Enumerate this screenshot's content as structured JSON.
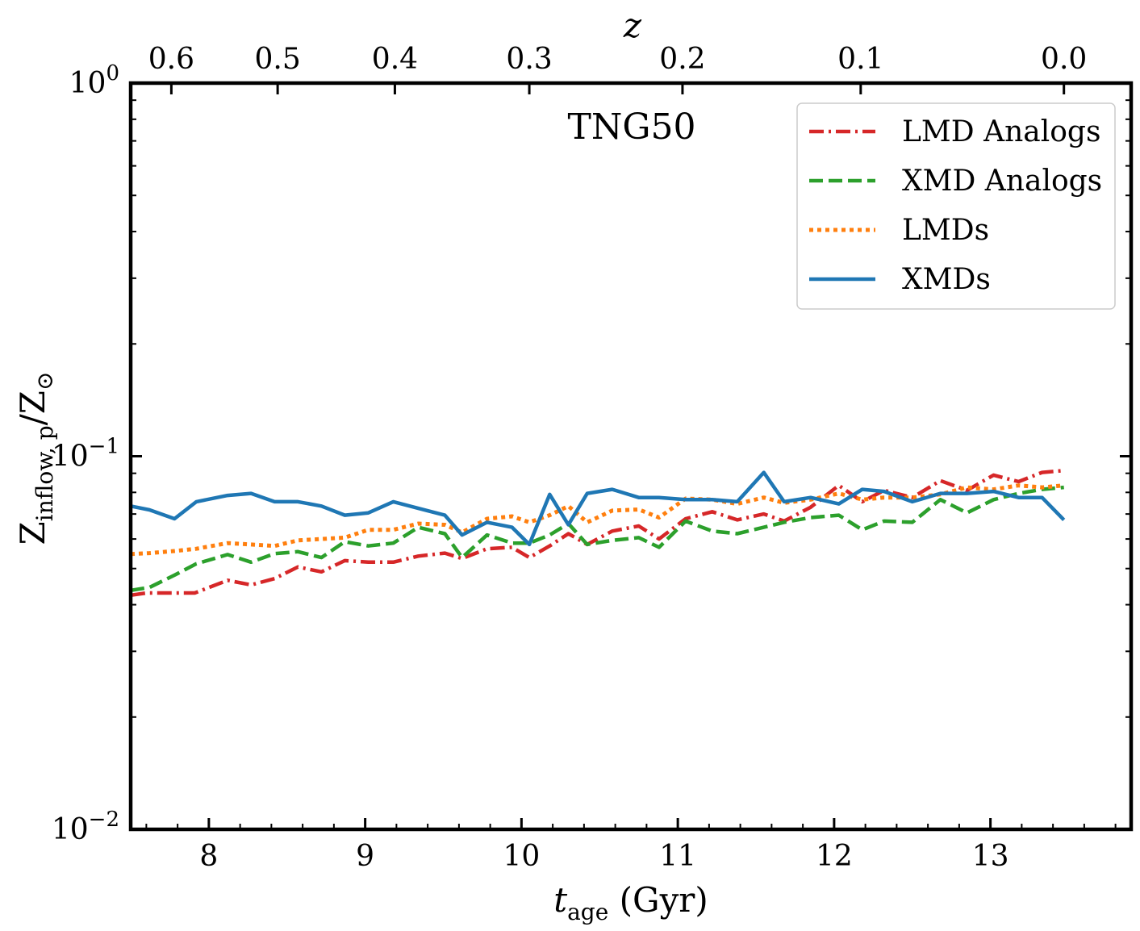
{
  "chart_data": {
    "type": "line",
    "annotation": "TNG50",
    "xlabel_main": "t",
    "xlabel_sub": "age",
    "xlabel_unit": " (Gyr)",
    "ylabel_main": "Z",
    "ylabel_sub": "inflow, p",
    "ylabel_tail": "/Z",
    "ylabel_symbol": "⊙",
    "top_xlabel": "z",
    "xlim": [
      7.5,
      13.9
    ],
    "ylim": [
      0.01,
      1.0
    ],
    "yscale": "log",
    "xticks": [
      {
        "value": 8,
        "label": "8"
      },
      {
        "value": 9,
        "label": "9"
      },
      {
        "value": 10,
        "label": "10"
      },
      {
        "value": 11,
        "label": "11"
      },
      {
        "value": 12,
        "label": "12"
      },
      {
        "value": 13,
        "label": "13"
      }
    ],
    "yticks": [
      {
        "value": 0.01,
        "base": "10",
        "exp": "−2"
      },
      {
        "value": 0.1,
        "base": "10",
        "exp": "−1"
      },
      {
        "value": 1.0,
        "base": "10",
        "exp": "0"
      }
    ],
    "top_ticks": [
      {
        "tage": 7.76,
        "label": "0.6"
      },
      {
        "tage": 8.44,
        "label": "0.5"
      },
      {
        "tage": 9.19,
        "label": "0.4"
      },
      {
        "tage": 10.05,
        "label": "0.3"
      },
      {
        "tage": 11.03,
        "label": "0.2"
      },
      {
        "tage": 12.17,
        "label": "0.1"
      },
      {
        "tage": 13.47,
        "label": "0.0"
      }
    ],
    "legend_position": "top-right",
    "series": [
      {
        "name": "LMD Analogs",
        "color": "#d62728",
        "dash": "dashdot",
        "x": [
          7.5,
          7.6,
          7.76,
          7.91,
          8.12,
          8.27,
          8.42,
          8.57,
          8.72,
          8.87,
          9.02,
          9.18,
          9.34,
          9.51,
          9.62,
          9.78,
          9.94,
          10.05,
          10.18,
          10.3,
          10.42,
          10.58,
          10.75,
          10.88,
          11.05,
          11.22,
          11.38,
          11.55,
          11.68,
          11.85,
          12.03,
          12.18,
          12.32,
          12.5,
          12.68,
          12.85,
          13.02,
          13.18,
          13.33,
          13.47
        ],
        "y": [
          0.0424,
          0.043,
          0.043,
          0.043,
          0.0465,
          0.0452,
          0.047,
          0.0505,
          0.049,
          0.0525,
          0.052,
          0.052,
          0.054,
          0.055,
          0.0532,
          0.0565,
          0.057,
          0.0535,
          0.0575,
          0.062,
          0.058,
          0.063,
          0.065,
          0.06,
          0.068,
          0.071,
          0.0675,
          0.07,
          0.067,
          0.073,
          0.0835,
          0.0755,
          0.081,
          0.0775,
          0.086,
          0.081,
          0.089,
          0.0855,
          0.0905,
          0.0915
        ]
      },
      {
        "name": "XMD Analogs",
        "color": "#2ca02c",
        "dash": "dashed",
        "x": [
          7.5,
          7.62,
          7.78,
          7.92,
          8.12,
          8.27,
          8.42,
          8.57,
          8.72,
          8.87,
          9.02,
          9.18,
          9.34,
          9.51,
          9.62,
          9.78,
          9.94,
          10.05,
          10.18,
          10.3,
          10.42,
          10.58,
          10.75,
          10.88,
          11.05,
          11.22,
          11.38,
          11.55,
          11.68,
          11.85,
          12.03,
          12.18,
          12.32,
          12.5,
          12.68,
          12.85,
          13.02,
          13.18,
          13.33,
          13.47
        ],
        "y": [
          0.0437,
          0.0445,
          0.048,
          0.0515,
          0.0545,
          0.052,
          0.0548,
          0.0555,
          0.0535,
          0.059,
          0.0575,
          0.0585,
          0.0645,
          0.062,
          0.0535,
          0.0615,
          0.0585,
          0.0585,
          0.0615,
          0.066,
          0.058,
          0.0595,
          0.0605,
          0.057,
          0.067,
          0.063,
          0.062,
          0.0645,
          0.0665,
          0.0685,
          0.0695,
          0.0635,
          0.067,
          0.0665,
          0.0765,
          0.0705,
          0.0765,
          0.0795,
          0.0815,
          0.0825
        ]
      },
      {
        "name": "LMDs",
        "color": "#ff7f0e",
        "dash": "dotted",
        "x": [
          7.5,
          7.62,
          7.78,
          7.92,
          8.12,
          8.27,
          8.42,
          8.57,
          8.72,
          8.87,
          9.02,
          9.18,
          9.34,
          9.51,
          9.62,
          9.78,
          9.94,
          10.05,
          10.18,
          10.3,
          10.42,
          10.58,
          10.75,
          10.88,
          11.05,
          11.22,
          11.38,
          11.55,
          11.68,
          11.85,
          12.03,
          12.18,
          12.32,
          12.5,
          12.68,
          12.85,
          13.02,
          13.18,
          13.33,
          13.47
        ],
        "y": [
          0.0547,
          0.055,
          0.0557,
          0.0565,
          0.0585,
          0.058,
          0.0575,
          0.0595,
          0.06,
          0.0605,
          0.0635,
          0.0635,
          0.066,
          0.0655,
          0.0625,
          0.068,
          0.069,
          0.0665,
          0.0695,
          0.0735,
          0.0665,
          0.0715,
          0.072,
          0.0685,
          0.077,
          0.0765,
          0.0745,
          0.0775,
          0.075,
          0.0765,
          0.0795,
          0.0765,
          0.0775,
          0.0775,
          0.079,
          0.0825,
          0.0815,
          0.0835,
          0.0825,
          0.0835
        ]
      },
      {
        "name": "XMDs",
        "color": "#1f77b4",
        "dash": "solid",
        "x": [
          7.5,
          7.62,
          7.78,
          7.92,
          8.12,
          8.27,
          8.42,
          8.57,
          8.72,
          8.87,
          9.02,
          9.18,
          9.34,
          9.51,
          9.62,
          9.78,
          9.94,
          10.05,
          10.18,
          10.3,
          10.42,
          10.58,
          10.75,
          10.88,
          11.05,
          11.22,
          11.38,
          11.55,
          11.68,
          11.85,
          12.03,
          12.18,
          12.32,
          12.5,
          12.68,
          12.85,
          13.02,
          13.18,
          13.33,
          13.47
        ],
        "y": [
          0.0735,
          0.0718,
          0.068,
          0.0755,
          0.0785,
          0.0795,
          0.0755,
          0.0755,
          0.0735,
          0.0695,
          0.0705,
          0.0755,
          0.0725,
          0.0695,
          0.0615,
          0.0665,
          0.0645,
          0.058,
          0.079,
          0.0655,
          0.0795,
          0.0815,
          0.0775,
          0.0775,
          0.0765,
          0.0765,
          0.0755,
          0.0905,
          0.0755,
          0.0775,
          0.0745,
          0.0815,
          0.0805,
          0.0755,
          0.0795,
          0.0795,
          0.0805,
          0.0775,
          0.0775,
          0.0675
        ]
      }
    ]
  }
}
